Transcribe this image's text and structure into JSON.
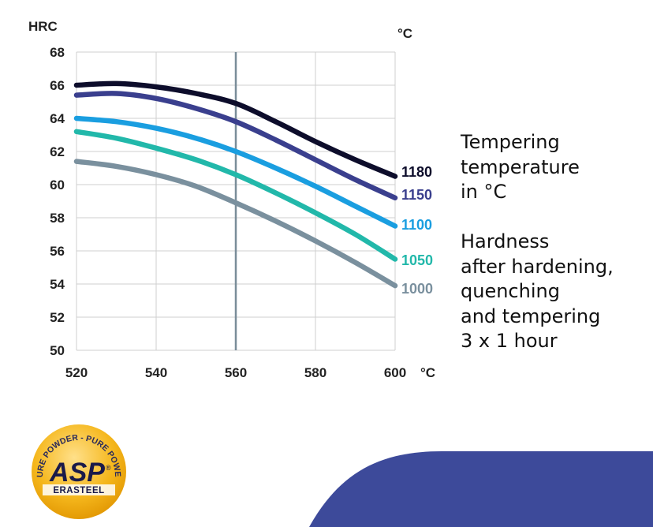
{
  "chart_data": {
    "type": "line",
    "xlabel": "°C",
    "ylabel": "HRC",
    "top_right_unit": "°C",
    "xlim": [
      520,
      600
    ],
    "ylim": [
      50,
      68
    ],
    "x_ticks": [
      "520",
      "540",
      "560",
      "580",
      "600"
    ],
    "y_ticks": [
      "50",
      "52",
      "54",
      "56",
      "58",
      "60",
      "62",
      "64",
      "66",
      "68"
    ],
    "grid": true,
    "reference_line_x": 560,
    "series": [
      {
        "name": "1180",
        "color": "#0d0d2b",
        "x": [
          520,
          530,
          540,
          550,
          560,
          570,
          580,
          590,
          600
        ],
        "y": [
          66.0,
          66.1,
          65.9,
          65.5,
          64.9,
          63.8,
          62.6,
          61.5,
          60.5
        ]
      },
      {
        "name": "1150",
        "color": "#3a3f8e",
        "x": [
          520,
          530,
          540,
          550,
          560,
          570,
          580,
          590,
          600
        ],
        "y": [
          65.4,
          65.5,
          65.2,
          64.6,
          63.8,
          62.7,
          61.5,
          60.3,
          59.2
        ]
      },
      {
        "name": "1100",
        "color": "#1a9ee0",
        "x": [
          520,
          530,
          540,
          550,
          560,
          570,
          580,
          590,
          600
        ],
        "y": [
          64.0,
          63.8,
          63.4,
          62.8,
          62.0,
          61.0,
          59.9,
          58.7,
          57.5
        ]
      },
      {
        "name": "1050",
        "color": "#22b8aa",
        "x": [
          520,
          530,
          540,
          550,
          560,
          570,
          580,
          590,
          600
        ],
        "y": [
          63.2,
          62.8,
          62.2,
          61.5,
          60.6,
          59.5,
          58.3,
          57.0,
          55.5
        ]
      },
      {
        "name": "1000",
        "color": "#7a909e",
        "x": [
          520,
          530,
          540,
          550,
          560,
          570,
          580,
          590,
          600
        ],
        "y": [
          61.4,
          61.1,
          60.6,
          59.9,
          58.9,
          57.8,
          56.6,
          55.3,
          53.9
        ]
      }
    ]
  },
  "legend_title": "Tempering\ntemperature\nin °C",
  "caption": "Hardness\nafter hardening,\nquenching\nand tempering\n3 x 1 hour",
  "logo": {
    "ring_text": "PURE POWDER - PURE POWER",
    "mark": "ASP",
    "registered": "®",
    "brand": "ERASTEEL"
  },
  "colors": {
    "grid": "#cfcfcf",
    "reference_line": "#7a8d99",
    "blob": "#3d4a9a",
    "logo_gold": "#f5b71c"
  }
}
